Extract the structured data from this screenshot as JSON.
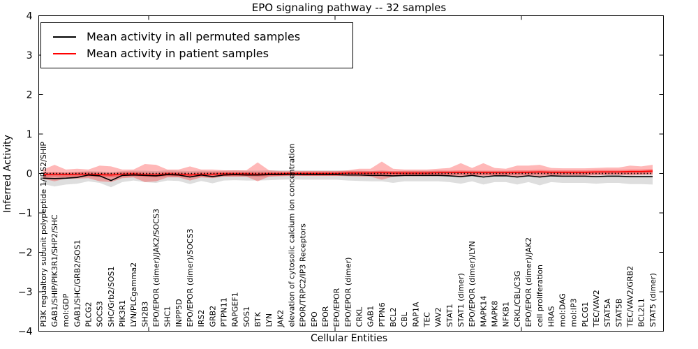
{
  "chart_data": {
    "type": "line",
    "title": "EPO signaling pathway -- 32 samples",
    "xlabel": "Cellular Entities",
    "ylabel": "Inferred Activity",
    "ylim": [
      -4,
      4
    ],
    "yticks": [
      4,
      3,
      2,
      1,
      0,
      -1,
      -2,
      -3,
      -4
    ],
    "grid": false,
    "legend_position": "upper left",
    "categories": [
      "PI3K regualtory subunit polypeptide 1/IRS2/SHIP",
      "GAB1/SHIP/PIK3R1/SHP2/SHC",
      "mol:GDP",
      "GAB1/SHC/GRB2/SOS1",
      "PLCG2",
      "SOCS3",
      "SHC/Grb2/SOS1",
      "PIK3R1",
      "LYN/PLCgamma2",
      "SH2B3",
      "EPO/EPOR (dimer)/JAK2/SOCS3",
      "SHC1",
      "INPP5D",
      "EPO/EPOR (dimer)/SOCS3",
      "IRS2",
      "GRB2",
      "PTPN11",
      "RAPGEF1",
      "SOS1",
      "BTK",
      "LYN",
      "JAK2",
      "elevation of cytosolic calcium ion concentration",
      "EPOR/TRPC2/IP3 Receptors",
      "EPO",
      "EPOR",
      "EPO/EPOR",
      "EPO/EPOR (dimer)",
      "CRKL",
      "GAB1",
      "PTPN6",
      "BCL2",
      "CBL",
      "RAP1A",
      "TEC",
      "VAV2",
      "STAT1",
      "STAT1 (dimer)",
      "EPO/EPOR (dimer)/LYN",
      "MAPK14",
      "MAPK8",
      "NFKB1",
      "CRKL/CBL/C3G",
      "EPO/EPOR (dimer)/JAK2",
      "cell proliferation",
      "HRAS",
      "mol:DAG",
      "mol:IP3",
      "PLCG1",
      "TEC/VAV2",
      "STAT5A",
      "STAT5B",
      "TEC/VAV2/GRB2",
      "BCL2L1",
      "STAT5 (dimer)"
    ],
    "series": [
      {
        "name": "Mean activity in all permuted samples",
        "color": "#000000",
        "values": [
          -0.12,
          -0.13,
          -0.12,
          -0.1,
          -0.04,
          -0.06,
          -0.18,
          -0.05,
          -0.04,
          -0.05,
          -0.06,
          -0.03,
          -0.04,
          -0.09,
          -0.04,
          -0.08,
          -0.04,
          -0.03,
          -0.04,
          -0.04,
          -0.03,
          -0.03,
          -0.02,
          -0.03,
          -0.03,
          -0.03,
          -0.03,
          -0.04,
          -0.04,
          -0.05,
          -0.05,
          -0.06,
          -0.05,
          -0.05,
          -0.05,
          -0.05,
          -0.06,
          -0.08,
          -0.05,
          -0.09,
          -0.06,
          -0.06,
          -0.09,
          -0.06,
          -0.09,
          -0.06,
          -0.07,
          -0.07,
          -0.07,
          -0.08,
          -0.07,
          -0.07,
          -0.08,
          -0.08,
          -0.08
        ]
      },
      {
        "name": "Mean activity in patient samples",
        "color": "#ff0000",
        "values": [
          -0.03,
          -0.02,
          -0.03,
          -0.02,
          -0.02,
          -0.03,
          -0.04,
          -0.02,
          -0.01,
          -0.03,
          -0.04,
          -0.01,
          -0.02,
          -0.04,
          -0.02,
          -0.02,
          -0.01,
          -0.01,
          -0.01,
          -0.02,
          -0.01,
          -0.01,
          0.0,
          0.0,
          0.0,
          0.0,
          0.0,
          0.01,
          0.01,
          0.01,
          0.02,
          0.01,
          0.01,
          0.01,
          0.01,
          0.02,
          0.02,
          0.03,
          0.02,
          0.02,
          0.02,
          0.02,
          0.03,
          0.03,
          0.04,
          0.03,
          0.03,
          0.03,
          0.03,
          0.04,
          0.04,
          0.04,
          0.05,
          0.05,
          0.06
        ]
      }
    ],
    "bands": [
      {
        "name": "permuted-std-band",
        "color": "#000000",
        "opacity": 0.13,
        "upper": [
          0.02,
          0.03,
          0.02,
          0.04,
          0.06,
          0.05,
          0.03,
          0.06,
          0.07,
          0.07,
          0.06,
          0.08,
          0.07,
          0.06,
          0.07,
          0.06,
          0.07,
          0.08,
          0.07,
          0.07,
          0.08,
          0.08,
          0.08,
          0.08,
          0.08,
          0.08,
          0.08,
          0.07,
          0.07,
          0.06,
          0.07,
          0.06,
          0.07,
          0.07,
          0.07,
          0.07,
          0.06,
          0.05,
          0.07,
          0.06,
          0.06,
          0.06,
          0.05,
          0.06,
          0.05,
          0.06,
          0.06,
          0.06,
          0.06,
          0.05,
          0.06,
          0.06,
          0.05,
          0.05,
          0.05
        ],
        "lower": [
          -0.27,
          -0.33,
          -0.28,
          -0.26,
          -0.2,
          -0.24,
          -0.35,
          -0.22,
          -0.18,
          -0.22,
          -0.24,
          -0.18,
          -0.19,
          -0.27,
          -0.19,
          -0.25,
          -0.18,
          -0.17,
          -0.18,
          -0.18,
          -0.17,
          -0.16,
          -0.15,
          -0.16,
          -0.16,
          -0.16,
          -0.16,
          -0.18,
          -0.19,
          -0.2,
          -0.2,
          -0.24,
          -0.2,
          -0.2,
          -0.2,
          -0.2,
          -0.22,
          -0.26,
          -0.2,
          -0.28,
          -0.22,
          -0.22,
          -0.28,
          -0.22,
          -0.3,
          -0.22,
          -0.24,
          -0.24,
          -0.24,
          -0.26,
          -0.24,
          -0.24,
          -0.27,
          -0.27,
          -0.28
        ]
      },
      {
        "name": "patient-std-band",
        "color": "#ff0000",
        "opacity": 0.28,
        "upper": [
          0.1,
          0.22,
          0.1,
          0.12,
          0.1,
          0.2,
          0.18,
          0.1,
          0.1,
          0.24,
          0.22,
          0.1,
          0.1,
          0.18,
          0.1,
          0.1,
          0.08,
          0.08,
          0.08,
          0.28,
          0.08,
          0.06,
          0.05,
          0.06,
          0.06,
          0.06,
          0.06,
          0.08,
          0.12,
          0.12,
          0.3,
          0.12,
          0.1,
          0.1,
          0.1,
          0.12,
          0.14,
          0.26,
          0.14,
          0.26,
          0.14,
          0.12,
          0.2,
          0.2,
          0.22,
          0.14,
          0.13,
          0.13,
          0.13,
          0.14,
          0.15,
          0.15,
          0.2,
          0.18,
          0.22
        ],
        "lower": [
          -0.14,
          -0.2,
          -0.13,
          -0.13,
          -0.12,
          -0.2,
          -0.22,
          -0.12,
          -0.1,
          -0.22,
          -0.2,
          -0.1,
          -0.1,
          -0.18,
          -0.1,
          -0.12,
          -0.08,
          -0.08,
          -0.08,
          -0.2,
          -0.08,
          -0.06,
          -0.05,
          -0.06,
          -0.06,
          -0.06,
          -0.06,
          -0.07,
          -0.08,
          -0.08,
          -0.16,
          -0.08,
          -0.07,
          -0.07,
          -0.07,
          -0.07,
          -0.07,
          -0.1,
          -0.06,
          -0.06,
          -0.06,
          -0.06,
          -0.08,
          -0.06,
          -0.08,
          -0.05,
          -0.05,
          -0.05,
          -0.05,
          -0.05,
          -0.04,
          -0.04,
          -0.05,
          -0.04,
          -0.03
        ]
      },
      {
        "name": "patient-core-band",
        "color": "#ff0000",
        "opacity": 0.28,
        "upper": [
          0.02,
          0.03,
          0.02,
          0.03,
          0.03,
          0.02,
          0.01,
          0.03,
          0.04,
          0.02,
          0.01,
          0.04,
          0.03,
          0.01,
          0.03,
          0.03,
          0.04,
          0.04,
          0.04,
          0.03,
          0.04,
          0.04,
          0.05,
          0.05,
          0.05,
          0.05,
          0.05,
          0.06,
          0.06,
          0.06,
          0.07,
          0.06,
          0.06,
          0.06,
          0.06,
          0.07,
          0.07,
          0.08,
          0.07,
          0.07,
          0.07,
          0.07,
          0.08,
          0.08,
          0.09,
          0.08,
          0.08,
          0.08,
          0.08,
          0.09,
          0.09,
          0.09,
          0.1,
          0.1,
          0.11
        ],
        "lower": [
          -0.09,
          -0.08,
          -0.09,
          -0.08,
          -0.08,
          -0.09,
          -0.1,
          -0.08,
          -0.07,
          -0.09,
          -0.1,
          -0.07,
          -0.08,
          -0.1,
          -0.08,
          -0.08,
          -0.07,
          -0.07,
          -0.07,
          -0.08,
          -0.07,
          -0.07,
          -0.06,
          -0.06,
          -0.06,
          -0.06,
          -0.06,
          -0.05,
          -0.05,
          -0.05,
          -0.04,
          -0.05,
          -0.05,
          -0.05,
          -0.05,
          -0.04,
          -0.04,
          -0.03,
          -0.04,
          -0.04,
          -0.04,
          -0.04,
          -0.03,
          -0.03,
          -0.02,
          -0.03,
          -0.03,
          -0.03,
          -0.03,
          -0.02,
          -0.02,
          -0.02,
          -0.01,
          -0.01,
          0.0
        ]
      }
    ],
    "reference_line": {
      "y": 0,
      "style": "dotted",
      "color": "#000000"
    }
  }
}
